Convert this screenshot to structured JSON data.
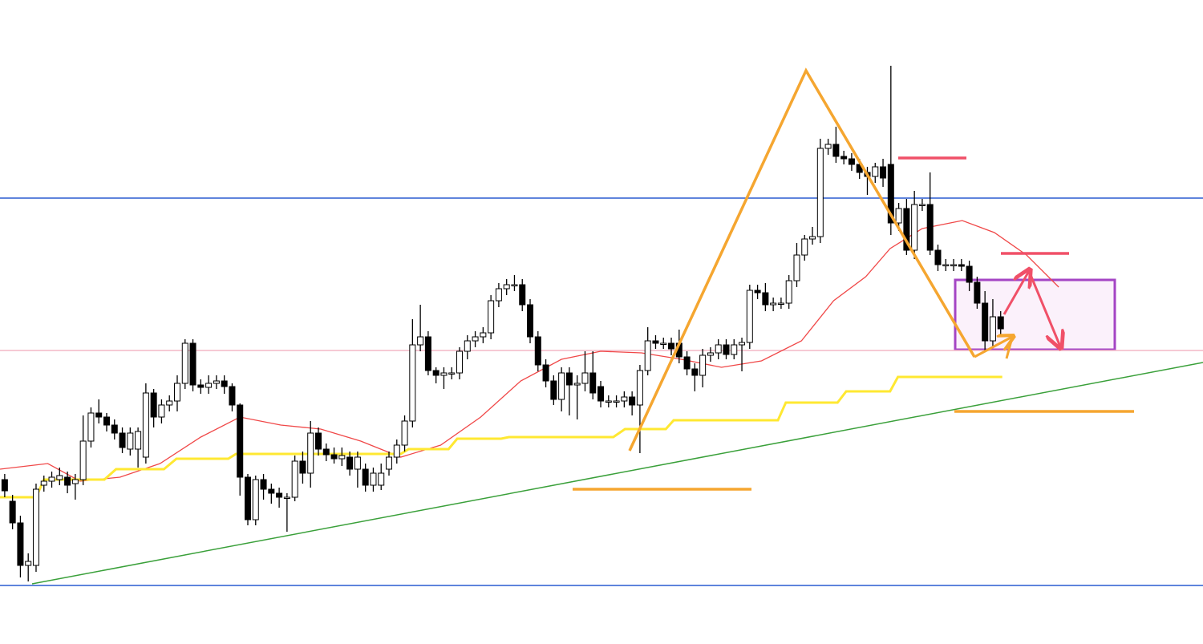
{
  "chart_data": {
    "type": "candlestick",
    "ylim": [
      0,
      803
    ],
    "xlim": [
      -0.6,
      152.8
    ],
    "up_color": "#ffffff",
    "down_color": "#000000",
    "edge_color": "#000000",
    "open": [
      205,
      178,
      151,
      98,
      98,
      198,
      203,
      205,
      208,
      200,
      205,
      253,
      288,
      283,
      273,
      263,
      243,
      243,
      233,
      313,
      283,
      298,
      303,
      325,
      375,
      323,
      320,
      325,
      328,
      321,
      298,
      208,
      155,
      205,
      193,
      188,
      183,
      183,
      228,
      213,
      263,
      243,
      236,
      231,
      233,
      218,
      218,
      198,
      198,
      218,
      233,
      248,
      278,
      373,
      383,
      341,
      335,
      338,
      338,
      365,
      378,
      383,
      388,
      428,
      443,
      448,
      448,
      423,
      383,
      348,
      328,
      305,
      338,
      323,
      325,
      338,
      321,
      303,
      303,
      303,
      308,
      298,
      341,
      378,
      375,
      375,
      375,
      358,
      343,
      335,
      360,
      363,
      373,
      361,
      373,
      376,
      441,
      438,
      423,
      425,
      425,
      453,
      485,
      505,
      508,
      618,
      623,
      608,
      605,
      598,
      588,
      583,
      595,
      598,
      525,
      543,
      491,
      548,
      548,
      491,
      473,
      473,
      473,
      471,
      451,
      425,
      378,
      408
    ],
    "high": [
      212,
      186,
      160,
      113,
      200,
      210,
      215,
      220,
      215,
      212,
      285,
      295,
      305,
      288,
      280,
      270,
      270,
      270,
      325,
      318,
      305,
      310,
      335,
      380,
      380,
      330,
      335,
      335,
      335,
      325,
      300,
      212,
      210,
      212,
      200,
      195,
      188,
      235,
      240,
      278,
      270,
      250,
      245,
      245,
      240,
      240,
      225,
      220,
      225,
      240,
      255,
      285,
      405,
      423,
      390,
      345,
      345,
      345,
      370,
      385,
      390,
      395,
      435,
      450,
      455,
      460,
      455,
      430,
      390,
      355,
      335,
      345,
      345,
      335,
      365,
      365,
      328,
      310,
      310,
      315,
      315,
      348,
      395,
      385,
      382,
      382,
      392,
      365,
      350,
      368,
      370,
      380,
      380,
      380,
      382,
      448,
      448,
      450,
      432,
      432,
      460,
      500,
      510,
      520,
      630,
      630,
      645,
      615,
      612,
      605,
      595,
      600,
      605,
      721,
      550,
      555,
      565,
      555,
      588,
      498,
      480,
      480,
      480,
      478,
      458,
      440,
      430,
      415
    ],
    "low": [
      183,
      143,
      83,
      78,
      90,
      190,
      195,
      198,
      188,
      180,
      198,
      245,
      275,
      265,
      255,
      238,
      235,
      220,
      225,
      270,
      275,
      290,
      290,
      318,
      315,
      312,
      312,
      318,
      312,
      290,
      185,
      148,
      148,
      180,
      175,
      170,
      140,
      178,
      200,
      195,
      235,
      228,
      225,
      222,
      210,
      195,
      190,
      190,
      192,
      210,
      225,
      240,
      270,
      365,
      335,
      325,
      318,
      330,
      330,
      355,
      370,
      375,
      380,
      420,
      435,
      440,
      415,
      375,
      340,
      320,
      298,
      290,
      285,
      280,
      315,
      305,
      295,
      295,
      295,
      295,
      285,
      238,
      335,
      368,
      368,
      360,
      350,
      335,
      315,
      320,
      352,
      355,
      355,
      355,
      340,
      368,
      430,
      415,
      415,
      418,
      418,
      445,
      478,
      498,
      500,
      610,
      600,
      598,
      590,
      580,
      560,
      575,
      570,
      510,
      515,
      485,
      480,
      540,
      485,
      465,
      465,
      465,
      465,
      440,
      418,
      365,
      370,
      385
    ],
    "close": [
      191,
      151,
      98,
      103,
      193,
      203,
      208,
      210,
      198,
      205,
      253,
      288,
      283,
      273,
      263,
      245,
      263,
      265,
      313,
      283,
      298,
      303,
      325,
      375,
      323,
      320,
      325,
      328,
      321,
      298,
      208,
      155,
      205,
      193,
      188,
      183,
      183,
      228,
      213,
      263,
      243,
      236,
      231,
      235,
      218,
      233,
      198,
      213,
      213,
      233,
      248,
      278,
      373,
      383,
      341,
      335,
      338,
      338,
      365,
      378,
      383,
      388,
      428,
      443,
      448,
      448,
      423,
      383,
      348,
      328,
      305,
      338,
      323,
      325,
      338,
      313,
      303,
      303,
      303,
      308,
      298,
      341,
      378,
      375,
      375,
      368,
      358,
      343,
      335,
      360,
      363,
      373,
      361,
      373,
      376,
      441,
      438,
      423,
      425,
      425,
      453,
      485,
      505,
      508,
      618,
      623,
      608,
      605,
      598,
      588,
      583,
      595,
      581,
      525,
      543,
      491,
      548,
      548,
      491,
      473,
      473,
      473,
      471,
      451,
      425,
      378,
      408,
      393
    ],
    "series": [
      {
        "type": "line",
        "color": "#f04848",
        "x": [
          -0.6,
          5.5,
          9.6,
          14.7,
          19.8,
          25,
          30,
          35.2,
          40.3,
          45.4,
          50.5,
          55.6,
          60.7,
          65.8,
          71,
          76,
          81.2,
          86.3,
          91.4,
          96.5,
          101.6,
          105.7,
          109.8,
          112.9,
          117,
          122.1,
          126.2,
          130.3,
          134.4
        ],
        "values": [
          218,
          225,
          203,
          208,
          225,
          258,
          283,
          273,
          268,
          253,
          233,
          248,
          283,
          328,
          355,
          365,
          363,
          355,
          345,
          353,
          378,
          428,
          458,
          493,
          518,
          528,
          513,
          485,
          445
        ]
      },
      {
        "type": "line",
        "color": "#ffe832",
        "x": [
          -0.6,
          4.0,
          5.0,
          12.7,
          14.2,
          20.3,
          21.9,
          28.5,
          29.5,
          50.5,
          51.5,
          56.6,
          57.7,
          63.3,
          64.3,
          77.6,
          79.1,
          84.3,
          85.3,
          98.6,
          99.6,
          106.2,
          107.3,
          112.9,
          113.9,
          127.2
        ],
        "values": [
          183,
          183,
          205,
          205,
          218,
          218,
          231,
          231,
          237,
          237,
          243,
          243,
          256,
          256,
          258,
          258,
          268,
          268,
          279,
          279,
          301,
          301,
          315,
          315,
          333,
          333
        ]
      }
    ]
  }
}
